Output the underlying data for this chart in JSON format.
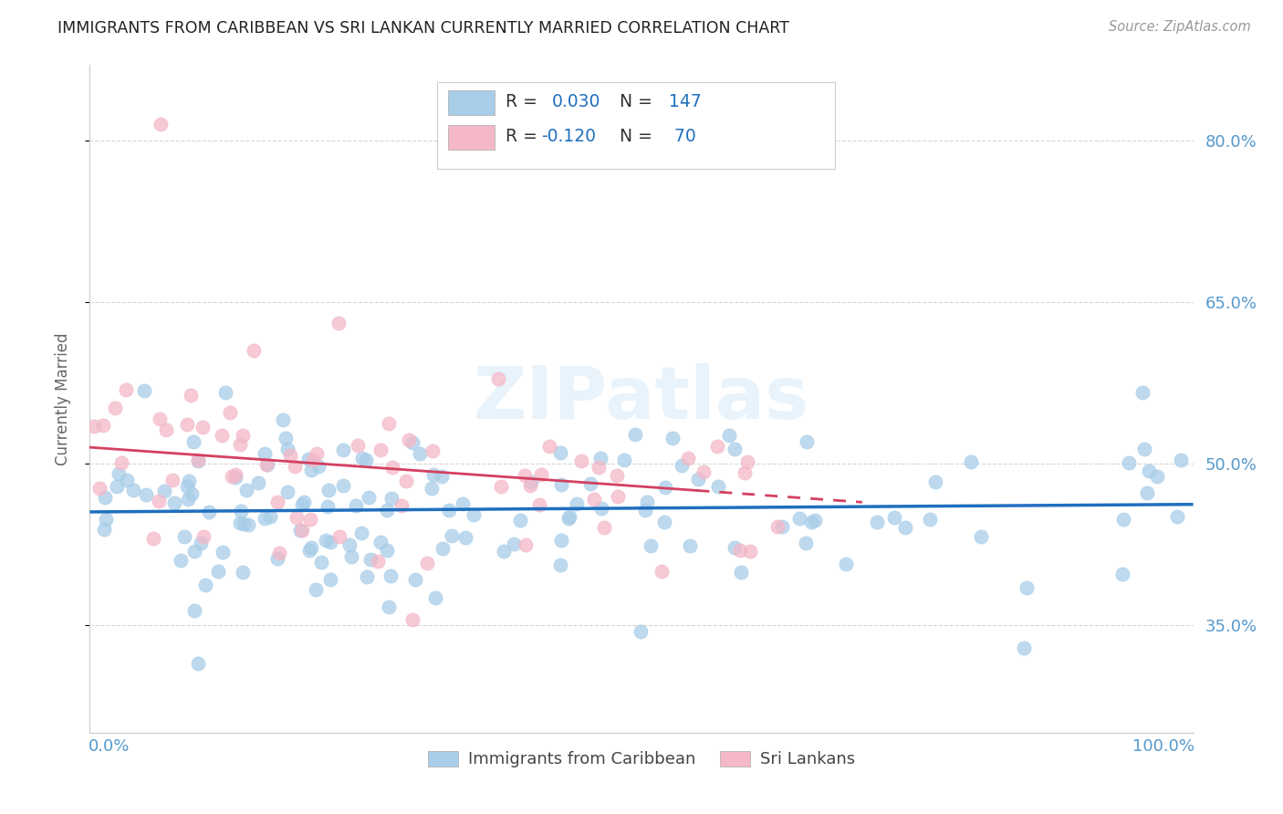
{
  "title": "IMMIGRANTS FROM CARIBBEAN VS SRI LANKAN CURRENTLY MARRIED CORRELATION CHART",
  "source": "Source: ZipAtlas.com",
  "ylabel": "Currently Married",
  "ytick_vals": [
    0.35,
    0.5,
    0.65,
    0.8
  ],
  "ytick_labels": [
    "35.0%",
    "50.0%",
    "65.0%",
    "80.0%"
  ],
  "legend_labels": [
    "Immigrants from Caribbean",
    "Sri Lankans"
  ],
  "watermark": "ZIPatlas",
  "color_blue": "#a8cde8",
  "color_pink": "#f4b8c8",
  "color_trendline_blue": "#1f6fbf",
  "color_trendline_pink": "#d44060",
  "color_axis_labels": "#5599cc",
  "background": "#ffffff",
  "grid_color": "#cccccc",
  "ylim_low": 0.25,
  "ylim_high": 0.87,
  "blue_trendline": [
    0.455,
    0.462
  ],
  "pink_trendline": [
    0.515,
    0.464
  ]
}
